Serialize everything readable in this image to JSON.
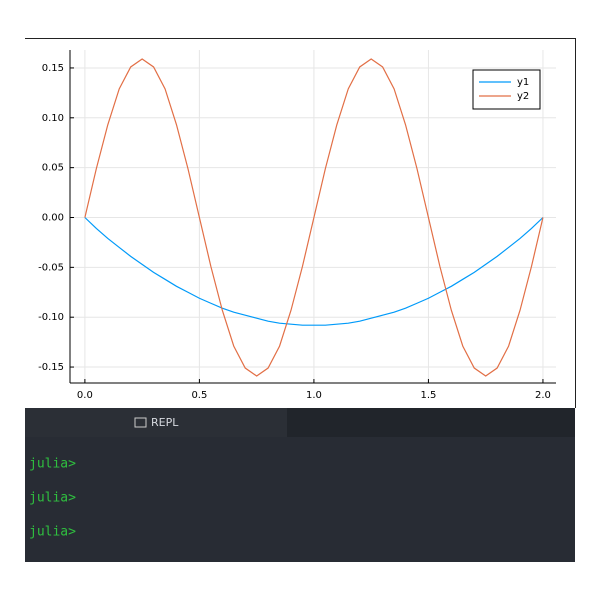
{
  "chart_data": {
    "type": "line",
    "x": [
      0,
      0.05,
      0.1,
      0.15,
      0.2,
      0.25,
      0.3,
      0.35,
      0.4,
      0.45,
      0.5,
      0.55,
      0.6,
      0.65,
      0.7,
      0.75,
      0.8,
      0.85,
      0.9,
      0.95,
      1,
      1.05,
      1.1,
      1.15,
      1.2,
      1.25,
      1.3,
      1.35,
      1.4,
      1.45,
      1.5,
      1.55,
      1.6,
      1.65,
      1.7,
      1.75,
      1.8,
      1.85,
      1.9,
      1.95,
      2
    ],
    "series": [
      {
        "name": "y1",
        "color": "#009af9",
        "values": [
          0,
          -0.011,
          -0.021,
          -0.03,
          -0.039,
          -0.047,
          -0.055,
          -0.062,
          -0.069,
          -0.075,
          -0.081,
          -0.086,
          -0.091,
          -0.095,
          -0.098,
          -0.101,
          -0.104,
          -0.106,
          -0.107,
          -0.108,
          -0.108,
          -0.108,
          -0.107,
          -0.106,
          -0.104,
          -0.101,
          -0.098,
          -0.095,
          -0.091,
          -0.086,
          -0.081,
          -0.075,
          -0.069,
          -0.062,
          -0.055,
          -0.047,
          -0.039,
          -0.03,
          -0.021,
          -0.011,
          0
        ]
      },
      {
        "name": "y2",
        "color": "#e26f46",
        "values": [
          0,
          0.049,
          0.093,
          0.129,
          0.151,
          0.159,
          0.151,
          0.129,
          0.093,
          0.049,
          0,
          -0.049,
          -0.093,
          -0.129,
          -0.151,
          -0.159,
          -0.151,
          -0.129,
          -0.093,
          -0.049,
          0,
          0.049,
          0.093,
          0.129,
          0.151,
          0.159,
          0.151,
          0.129,
          0.093,
          0.049,
          0,
          -0.049,
          -0.093,
          -0.129,
          -0.151,
          -0.159,
          -0.151,
          -0.129,
          -0.093,
          -0.049,
          0
        ]
      }
    ],
    "xlim": [
      -0.065,
      2.057
    ],
    "ylim": [
      -0.166,
      0.168
    ],
    "xticks": [
      {
        "value": 0,
        "label": "0.0"
      },
      0.5,
      {
        "value": 1,
        "label": "1.0"
      },
      1.5,
      {
        "value": 2,
        "label": "2.0"
      }
    ],
    "yticks": [
      {
        "value": -0.15,
        "label": "-0.15"
      },
      {
        "value": -0.1,
        "label": "-0.10"
      },
      -0.05,
      {
        "value": 0,
        "label": "0.00"
      },
      0.05,
      {
        "value": 0.1,
        "label": "0.10"
      },
      0.15
    ],
    "grid": true,
    "legend": "top-right"
  },
  "repl": {
    "tab": "REPL",
    "prompts": [
      "julia>",
      "julia>",
      "julia>"
    ]
  }
}
